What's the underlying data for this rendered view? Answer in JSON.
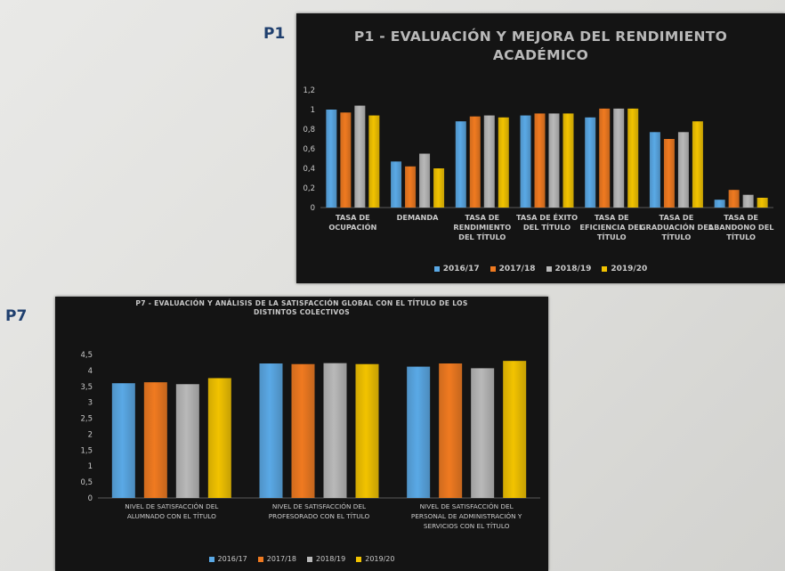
{
  "tags": {
    "p1": "P1",
    "p7": "P7"
  },
  "colors": {
    "2016/17": "#5aa9e6",
    "2017/18": "#f07a20",
    "2018/19": "#b9b9b9",
    "2019/20": "#f2c300"
  },
  "chart_data": [
    {
      "type": "bar",
      "title": "P1 - EVALUACIÓN Y MEJORA DEL RENDIMIENTO ACADÉMICO",
      "categories": [
        "TASA DE OCUPACIÓN",
        "DEMANDA",
        "TASA DE RENDIMIENTO DEL TÍTULO",
        "TASA DE ÉXITO DEL TÍTULO",
        "TASA DE EFICIENCIA DEL TÍTULO",
        "TASA DE GRADUACIÓN DEL TÍTULO",
        "TASA DE ABANDONO DEL TÍTULO"
      ],
      "series": [
        {
          "name": "2016/17",
          "values": [
            1.0,
            0.47,
            0.88,
            0.94,
            0.92,
            0.77,
            0.08
          ]
        },
        {
          "name": "2017/18",
          "values": [
            0.97,
            0.42,
            0.93,
            0.96,
            1.01,
            0.7,
            0.18
          ]
        },
        {
          "name": "2018/19",
          "values": [
            1.04,
            0.55,
            0.94,
            0.96,
            1.01,
            0.77,
            0.13
          ]
        },
        {
          "name": "2019/20",
          "values": [
            0.94,
            0.4,
            0.92,
            0.96,
            1.01,
            0.88,
            0.1
          ]
        }
      ],
      "ylim": [
        0,
        1.2
      ],
      "yticks": [
        "0",
        "0,2",
        "0,4",
        "0,6",
        "0,8",
        "1",
        "1,2"
      ],
      "grid": false,
      "legend": "bottom"
    },
    {
      "type": "bar",
      "title": "P7 - EVALUACIÓN Y ANÁLISIS DE LA SATISFACCIÓN GLOBAL CON EL TÍTULO DE LOS DISTINTOS COLECTIVOS",
      "categories": [
        "NIVEL DE SATISFACCIÓN DEL ALUMNADO CON EL TÍTULO",
        "NIVEL DE SATISFACCIÓN DEL PROFESORADO CON EL TÍTULO",
        "NIVEL DE SATISFACCIÓN DEL PERSONAL DE ADMINISTRACIÓN Y SERVICIOS CON EL TÍTULO"
      ],
      "series": [
        {
          "name": "2016/17",
          "values": [
            3.6,
            4.22,
            4.12
          ]
        },
        {
          "name": "2017/18",
          "values": [
            3.63,
            4.2,
            4.22
          ]
        },
        {
          "name": "2018/19",
          "values": [
            3.57,
            4.23,
            4.07
          ]
        },
        {
          "name": "2019/20",
          "values": [
            3.76,
            4.2,
            4.3
          ]
        }
      ],
      "ylim": [
        0,
        4.5
      ],
      "yticks": [
        "0",
        "0,5",
        "1",
        "1,5",
        "2",
        "2,5",
        "3",
        "3,5",
        "4",
        "4,5"
      ],
      "grid": false,
      "legend": "bottom"
    }
  ]
}
